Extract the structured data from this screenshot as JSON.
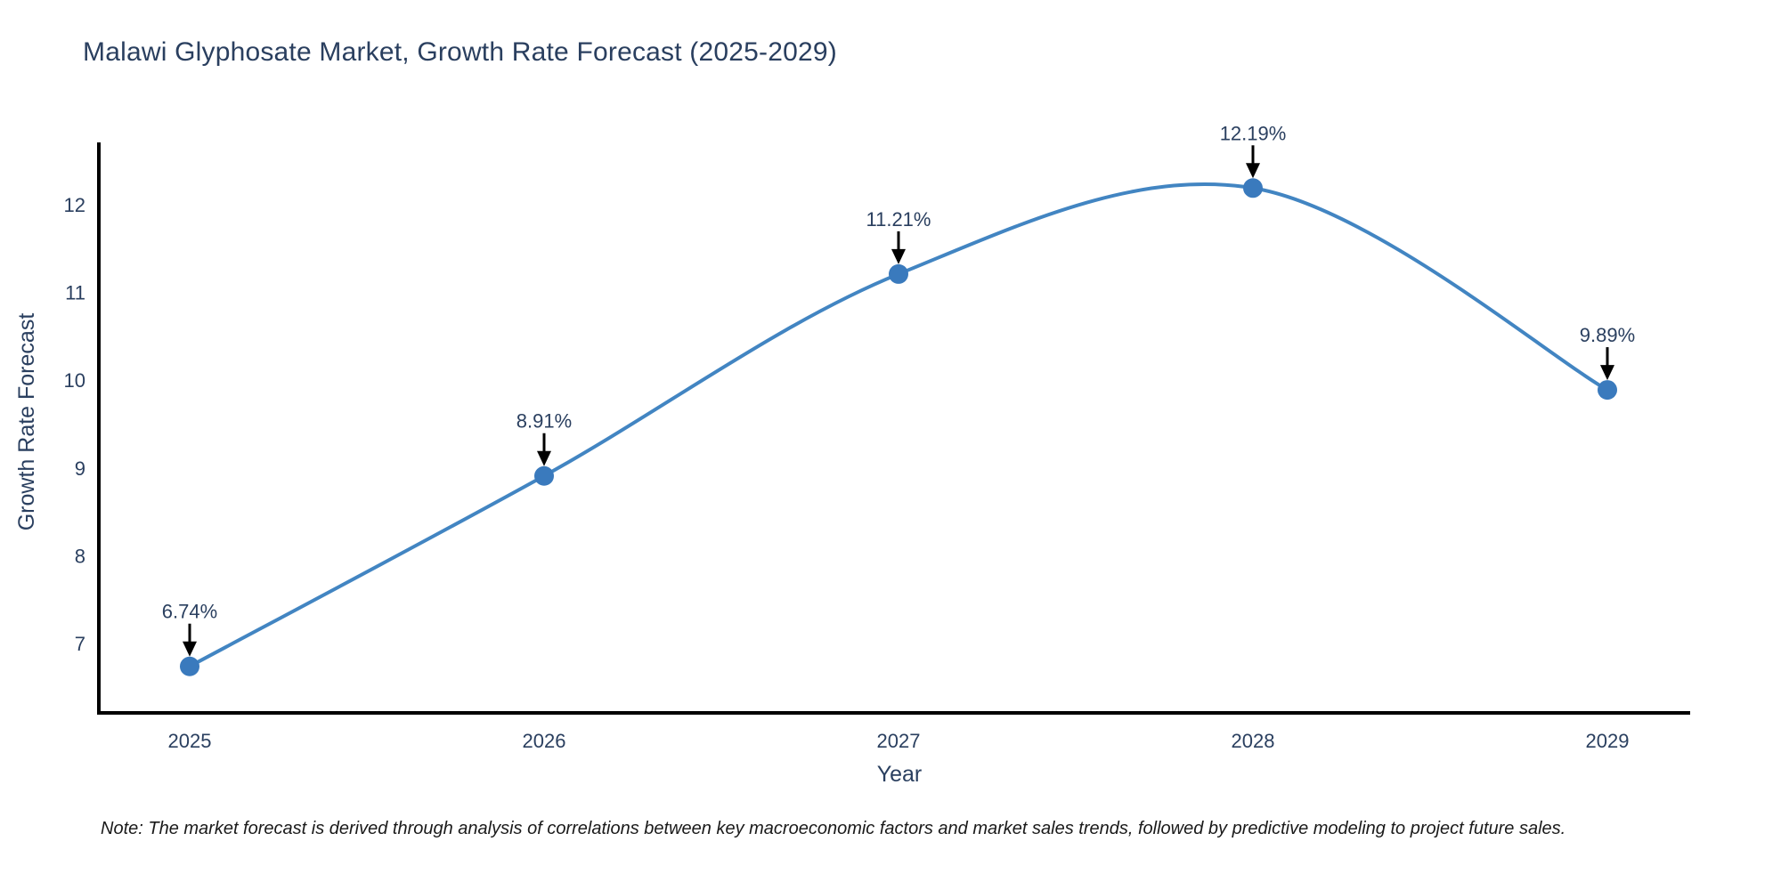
{
  "chart_data": {
    "type": "line",
    "title": "Malawi Glyphosate Market, Growth Rate Forecast (2025-2029)",
    "xlabel": "Year",
    "ylabel": "Growth Rate Forecast",
    "x": [
      "2025",
      "2026",
      "2027",
      "2028",
      "2029"
    ],
    "series": [
      {
        "name": "Growth Rate Forecast",
        "values": [
          6.74,
          8.91,
          11.21,
          12.19,
          9.89
        ],
        "point_labels": [
          "6.74%",
          "8.91%",
          "11.21%",
          "12.19%",
          "9.89%"
        ]
      }
    ],
    "y_ticks": [
      7,
      8,
      9,
      10,
      11,
      12
    ],
    "ylim": [
      6.21,
      12.71
    ],
    "line_shape": "spline",
    "grid": false,
    "legend_position": "none",
    "colors": {
      "line": "#4285c2",
      "marker": "#3a7abd",
      "axis": "#000000",
      "text": "#2a3f5f",
      "annotation_text": "#2a3f5f",
      "annotation_arrow": "#000000",
      "background": "#ffffff"
    }
  },
  "note": {
    "text": "Note: The market forecast is derived through analysis of correlations between key macroeconomic factors and market sales trends, followed by predictive modeling to project future sales."
  }
}
